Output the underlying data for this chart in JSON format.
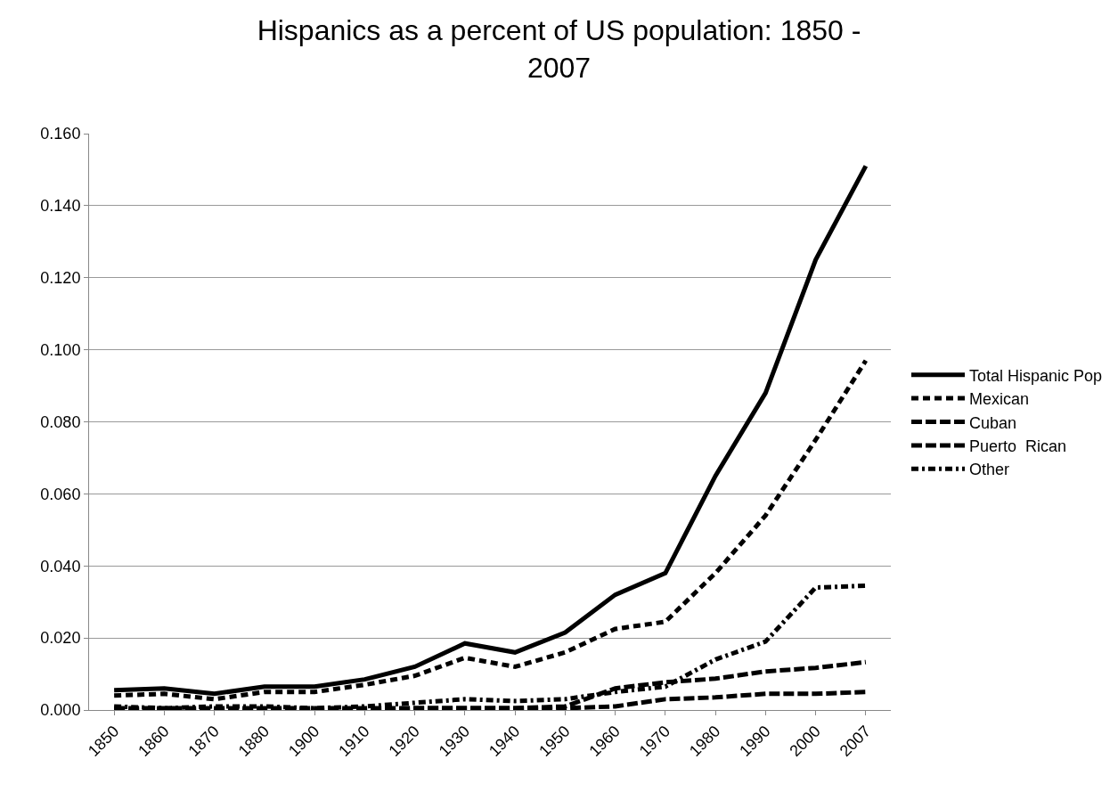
{
  "chart_data": {
    "type": "line",
    "title": "Hispanics as a percent of US population: 1850 - 2007",
    "categories": [
      "1850",
      "1860",
      "1870",
      "1880",
      "1900",
      "1910",
      "1920",
      "1930",
      "1940",
      "1950",
      "1960",
      "1970",
      "1980",
      "1990",
      "2000",
      "2007"
    ],
    "series": [
      {
        "name": "Total Hispanic Pop",
        "color": "#000000",
        "line_style": "solid",
        "values": [
          0.0055,
          0.006,
          0.0045,
          0.0065,
          0.0065,
          0.0085,
          0.012,
          0.0185,
          0.016,
          0.0215,
          0.032,
          0.038,
          0.065,
          0.088,
          0.125,
          0.151
        ]
      },
      {
        "name": "Mexican",
        "color": "#000000",
        "line_style": "dashed",
        "values": [
          0.004,
          0.0045,
          0.003,
          0.005,
          0.005,
          0.007,
          0.0095,
          0.0145,
          0.012,
          0.016,
          0.0225,
          0.0245,
          0.038,
          0.054,
          0.075,
          0.097
        ]
      },
      {
        "name": "Cuban",
        "color": "#000000",
        "line_style": "longdash",
        "values": [
          0.0005,
          0.0005,
          0.0005,
          0.0005,
          0.0005,
          0.0005,
          0.0005,
          0.0005,
          0.0005,
          0.0005,
          0.001,
          0.003,
          0.0035,
          0.0045,
          0.0045,
          0.005
        ]
      },
      {
        "name": "Puerto  Rican",
        "color": "#000000",
        "line_style": "longdash",
        "values": [
          0.0,
          0.0,
          0.0,
          0.0,
          0.0,
          0.0,
          0.0005,
          0.0005,
          0.0005,
          0.001,
          0.006,
          0.0077,
          0.0087,
          0.0107,
          0.0117,
          0.0133
        ]
      },
      {
        "name": "Other",
        "color": "#000000",
        "line_style": "dashdot",
        "values": [
          0.001,
          0.0005,
          0.001,
          0.001,
          0.0005,
          0.001,
          0.002,
          0.003,
          0.0025,
          0.003,
          0.005,
          0.0065,
          0.014,
          0.019,
          0.034,
          0.0345
        ]
      }
    ],
    "ylim": [
      0,
      0.16
    ],
    "yticks": [
      {
        "value": 0,
        "label": "0.000"
      },
      {
        "value": 0.02,
        "label": "0.020"
      },
      {
        "value": 0.04,
        "label": "0.040"
      },
      {
        "value": 0.06,
        "label": "0.060"
      },
      {
        "value": 0.08,
        "label": "0.080"
      },
      {
        "value": 0.1,
        "label": "0.100"
      },
      {
        "value": 0.12,
        "label": "0.120"
      },
      {
        "value": 0.14,
        "label": "0.140"
      },
      {
        "value": 0.16,
        "label": "0.160"
      }
    ],
    "grid": "y",
    "legend": "right",
    "marker": "none"
  }
}
